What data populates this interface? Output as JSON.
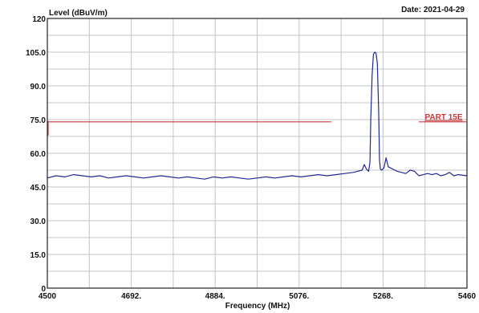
{
  "chart_data": {
    "type": "line",
    "ylabel": "Level (dBuV/m)",
    "xlabel": "Frequency (MHz)",
    "date_label": "Date: 2021-04-29",
    "xlim": [
      4500,
      5460
    ],
    "ylim": [
      0,
      120
    ],
    "x_ticks": [
      4500,
      4692,
      4884,
      5076,
      5268,
      5460
    ],
    "x_tick_labels": [
      "4500",
      "4692.",
      "4884.",
      "5076.",
      "5268.",
      "5460"
    ],
    "y_ticks": [
      0,
      15,
      30,
      45,
      60,
      75,
      90,
      105,
      120
    ],
    "y_tick_labels": [
      "0",
      "15.0",
      "30.0",
      "45.0",
      "60.0",
      "75.0",
      "90.0",
      "105.0",
      "120"
    ],
    "grid": true,
    "limit_line": {
      "label": "PART 15E",
      "value": 74,
      "x_start": 4500,
      "x_end": 5460,
      "color": "#c8383c"
    },
    "series": [
      {
        "color": "#1f2a8c",
        "x": [
          4500,
          4520,
          4540,
          4560,
          4580,
          4600,
          4620,
          4640,
          4660,
          4680,
          4700,
          4720,
          4740,
          4760,
          4780,
          4800,
          4820,
          4840,
          4860,
          4880,
          4900,
          4920,
          4940,
          4960,
          4980,
          5000,
          5020,
          5040,
          5060,
          5080,
          5100,
          5120,
          5140,
          5160,
          5180,
          5200,
          5210,
          5220,
          5225,
          5230,
          5235,
          5238,
          5240,
          5243,
          5246,
          5249,
          5252,
          5255,
          5258,
          5260,
          5262,
          5265,
          5270,
          5275,
          5280,
          5290,
          5300,
          5310,
          5320,
          5330,
          5340,
          5350,
          5360,
          5370,
          5380,
          5390,
          5400,
          5410,
          5420,
          5430,
          5440,
          5460
        ],
        "y": [
          49,
          50,
          49.5,
          50.5,
          50,
          49.5,
          50,
          49,
          49.5,
          50,
          49.5,
          49,
          49.5,
          50,
          49.5,
          49,
          49.5,
          49,
          48.5,
          49.5,
          49,
          49.5,
          49,
          48.5,
          49,
          49.5,
          49,
          49.5,
          50,
          49.5,
          50,
          50.5,
          50,
          50.5,
          51,
          51.5,
          52,
          52.5,
          55,
          53,
          52,
          56,
          75,
          95,
          104,
          105,
          104.5,
          100,
          78,
          57,
          53,
          52.5,
          53.5,
          58,
          54,
          53,
          52,
          51.5,
          51,
          52.5,
          52,
          50,
          50.5,
          51,
          50.5,
          51,
          50,
          50.5,
          51.5,
          50,
          50.5,
          50
        ]
      }
    ]
  }
}
